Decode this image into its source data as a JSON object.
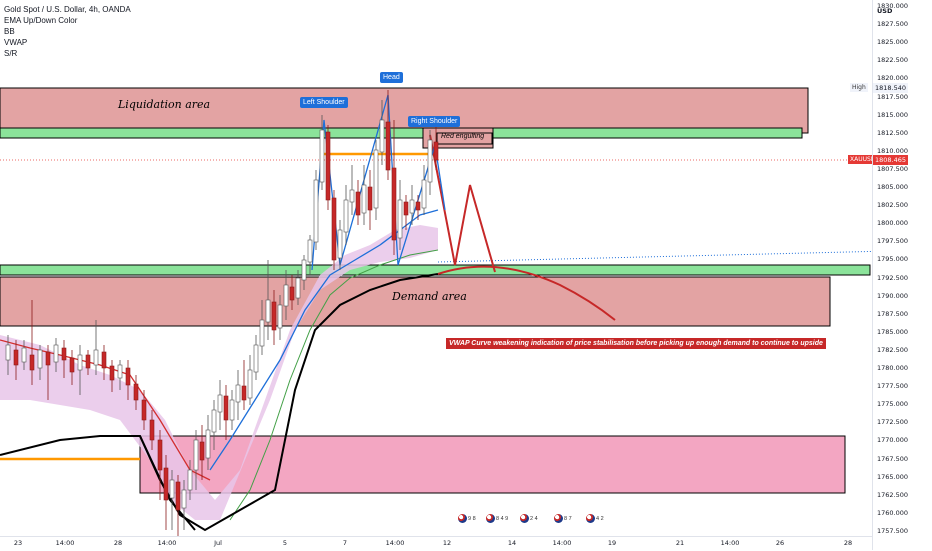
{
  "symbol": {
    "name": "Gold Spot / U.S. Dollar, 4h, OANDA",
    "ticker": "XAUUSD"
  },
  "indicators": [
    "EMA Up/Down Color",
    "BB",
    "VWAP",
    "S/R"
  ],
  "price_scale": {
    "currency": "USD",
    "labels": [
      "1830.000",
      "1827.500",
      "1825.000",
      "1822.500",
      "1820.000",
      "1817.500",
      "1815.000",
      "1812.500",
      "1810.000",
      "1807.500",
      "1805.000",
      "1802.500",
      "1800.000",
      "1797.500",
      "1795.000",
      "1792.500",
      "1790.000",
      "1787.500",
      "1785.000",
      "1782.500",
      "1780.000",
      "1777.500",
      "1775.000",
      "1772.500",
      "1770.000",
      "1767.500",
      "1765.000",
      "1762.500",
      "1760.000",
      "1757.500"
    ],
    "high_label": "High",
    "high_value": "1818.540",
    "last_value": "1808.465"
  },
  "time_scale": {
    "labels": [
      "23",
      "14:00",
      "28",
      "14:00",
      "Jul",
      "5",
      "7",
      "14:00",
      "12",
      "14",
      "14:00",
      "19",
      "21",
      "14:00",
      "26",
      "28",
      "14:00"
    ]
  },
  "annotations": {
    "liquidation_area": "Liquidation area",
    "demand_area": "Demand area",
    "head": "Head",
    "left_shoulder": "Left Shoulder",
    "right_shoulder": "Right Shoulder",
    "red_engulfing": "Red engulfing",
    "note": "VWAP Curve weakening indication of price stabilisation before picking up enough demand to continue to upside"
  },
  "events": [
    {
      "label": "9 8"
    },
    {
      "label": "8 4 9"
    },
    {
      "label": "2 4"
    },
    {
      "label": "8 7"
    },
    {
      "label": "4 2"
    }
  ],
  "colors": {
    "bull_candle": "#ffffff",
    "bear_candle": "#c62828",
    "ema": "#1e6fd9",
    "bb_fill": "#e8c6e9",
    "vwap": "#000000",
    "supply_zone": "#e3a3a3",
    "demand_zone": "#e3a3a3",
    "lower_zone": "#f3a6c2",
    "support_band": "#8be39a",
    "resistance_line": "#ff9800",
    "last_price": "#e53935"
  }
}
